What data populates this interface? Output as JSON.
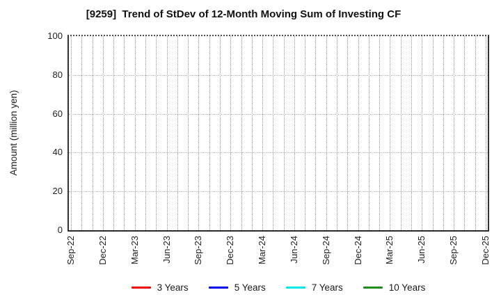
{
  "chart_data": {
    "type": "line",
    "title": "[9259]  Trend of StDev of 12-Month Moving Sum of Investing CF",
    "ylabel": "Amount (million yen)",
    "xlabel": "",
    "ylim": [
      0,
      100
    ],
    "yticks": [
      0,
      20,
      40,
      60,
      80,
      100
    ],
    "x_tick_labels": [
      "Sep-22",
      "Dec-22",
      "Mar-23",
      "Jun-23",
      "Sep-23",
      "Dec-23",
      "Mar-24",
      "Jun-24",
      "Sep-24",
      "Dec-24",
      "Mar-25",
      "Jun-25",
      "Sep-25",
      "Dec-25"
    ],
    "months_per_tick": 3,
    "total_month_slots": 40,
    "grid": true,
    "grid_style": "dotted",
    "legend_position": "bottom",
    "plot_empty": true,
    "series": [
      {
        "name": "3 Years",
        "color": "#ee0000",
        "values": []
      },
      {
        "name": "5 Years",
        "color": "#0000ee",
        "values": []
      },
      {
        "name": "7 Years",
        "color": "#00e6e6",
        "values": []
      },
      {
        "name": "10 Years",
        "color": "#1e8c1e",
        "values": []
      }
    ]
  }
}
